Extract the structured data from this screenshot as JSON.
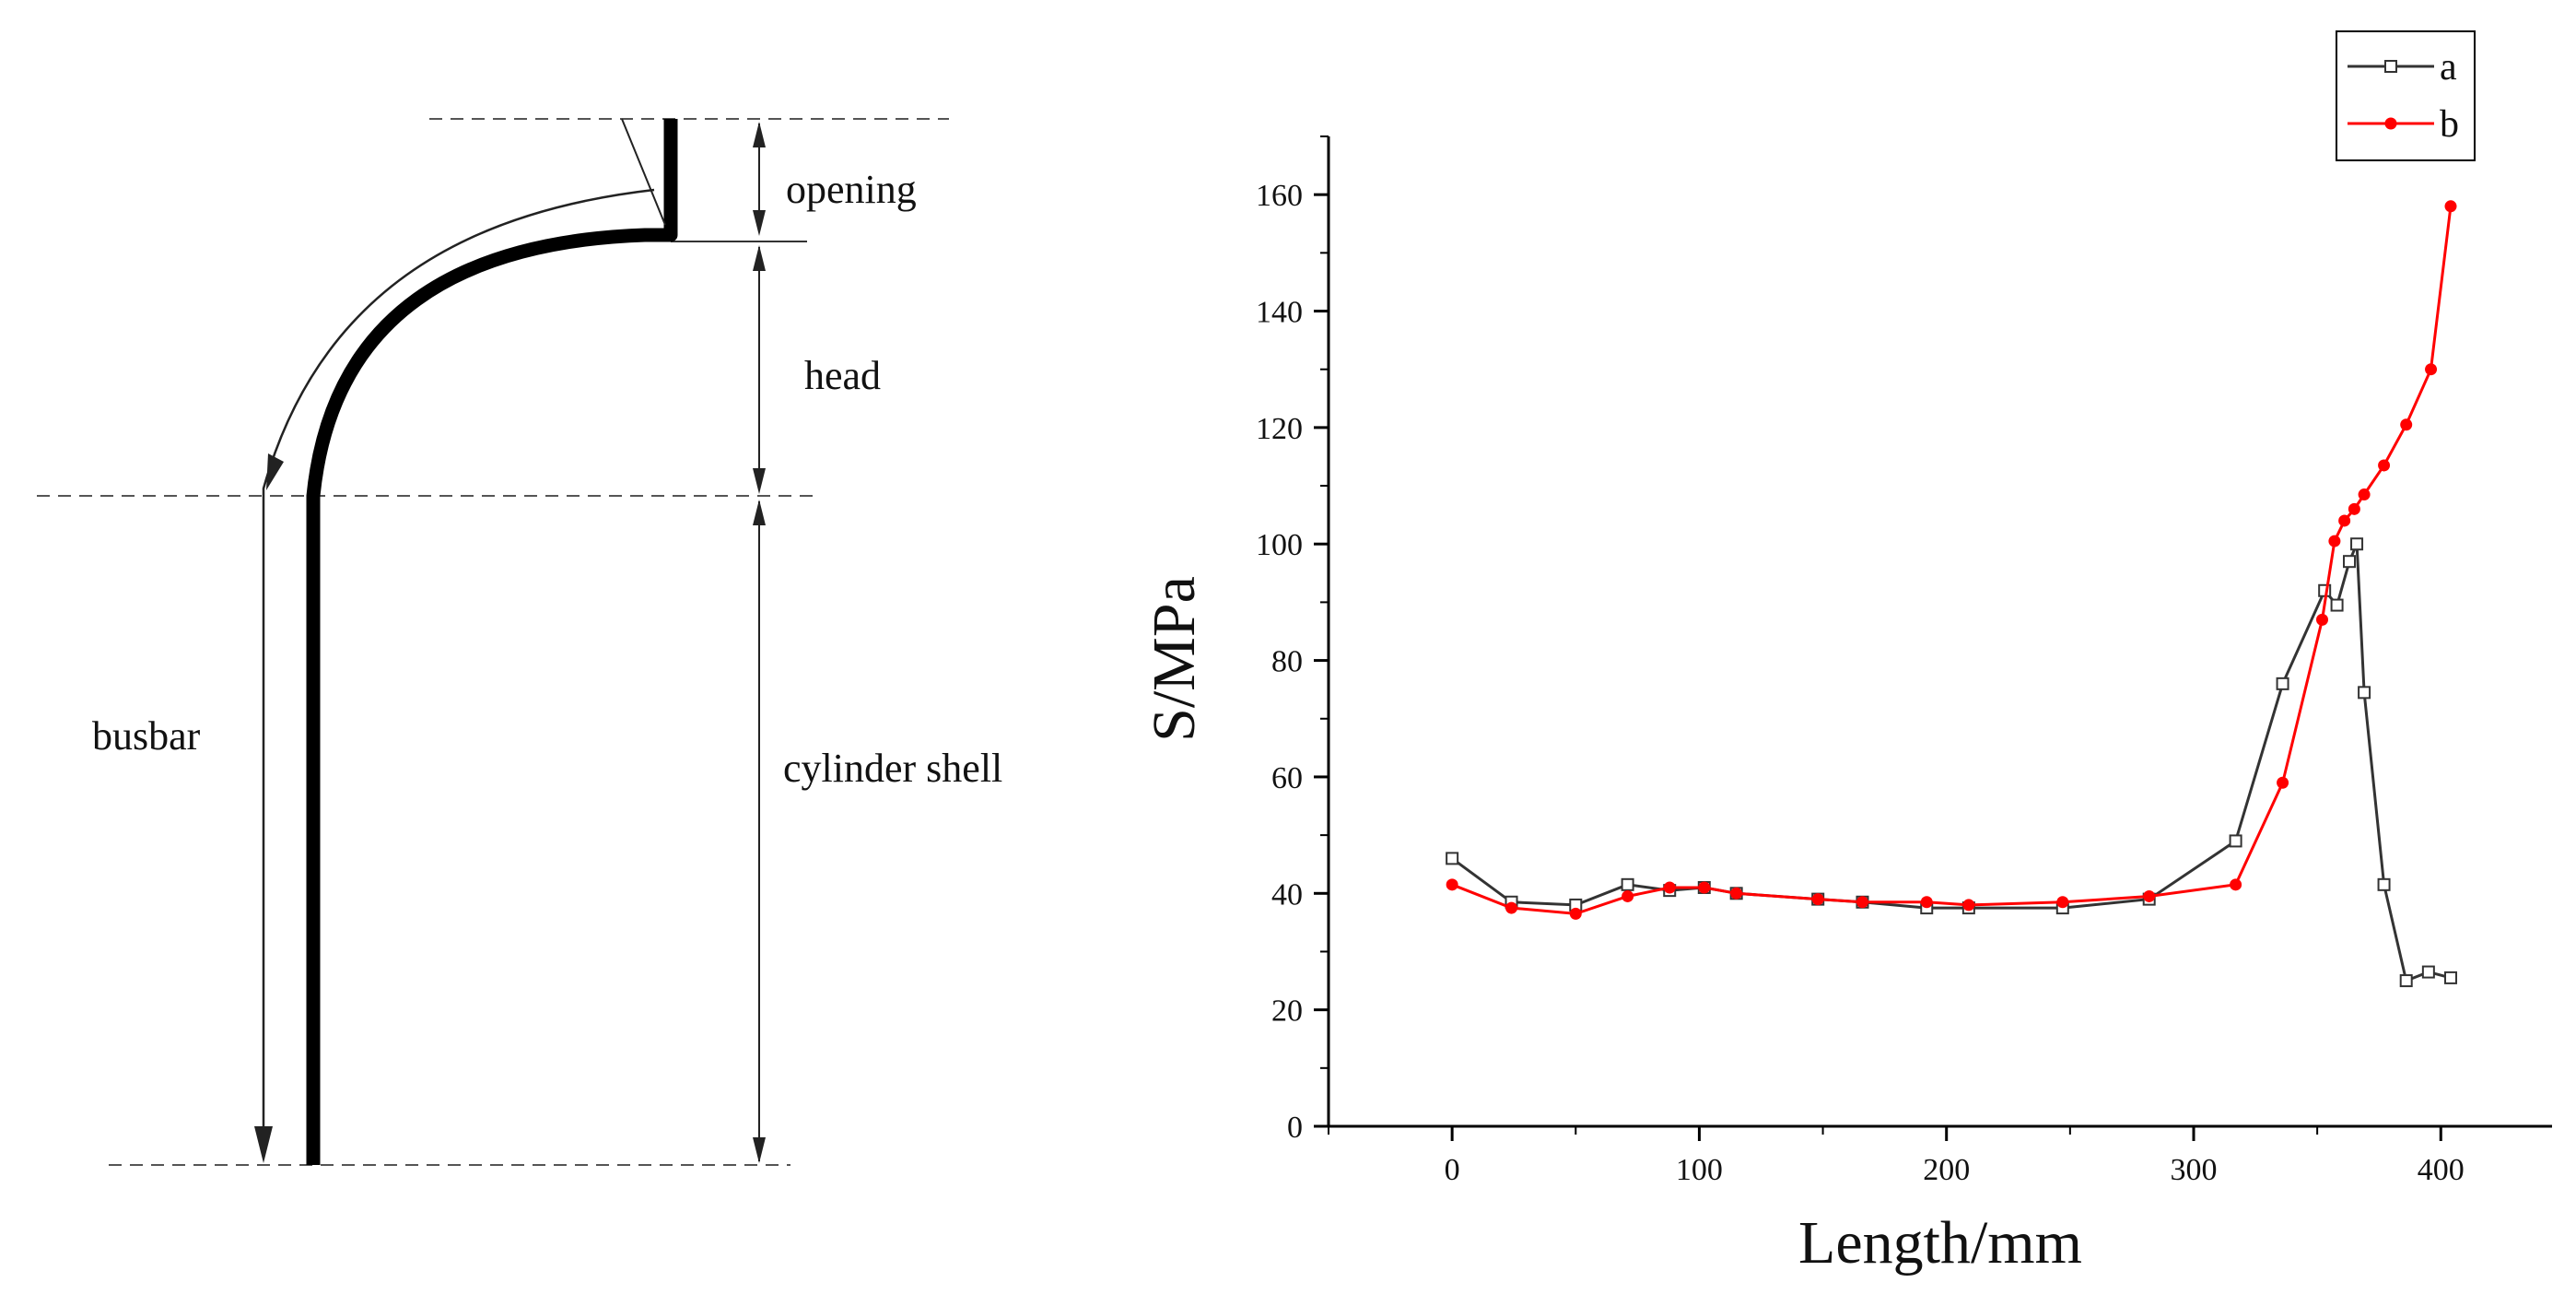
{
  "diagram": {
    "labels": {
      "opening": "opening",
      "head": "head",
      "busbar": "busbar",
      "cylinder_shell": "cylinder shell"
    }
  },
  "chart_data": {
    "type": "line",
    "xlabel": "Length/mm",
    "ylabel": "S/MPa",
    "xlim": [
      -50,
      445
    ],
    "ylim": [
      0,
      170
    ],
    "xticks": [
      0,
      100,
      200,
      300,
      400
    ],
    "yticks": [
      0,
      20,
      40,
      60,
      80,
      100,
      120,
      140,
      160
    ],
    "grid": false,
    "legend_position": "top-right",
    "series": [
      {
        "name": "a",
        "color": "#333333",
        "marker": "open-square",
        "x": [
          0,
          24,
          50,
          71,
          88,
          102,
          115,
          148,
          166,
          192,
          209,
          247,
          282,
          317,
          336,
          353,
          358,
          363,
          366,
          369,
          377,
          386,
          395,
          404
        ],
        "y": [
          46,
          38.5,
          38,
          41.5,
          40.5,
          41,
          40,
          39,
          38.5,
          37.5,
          37.5,
          37.5,
          39,
          49,
          76,
          92,
          89.5,
          97,
          100,
          74.5,
          41.5,
          25,
          26.5,
          25.5
        ]
      },
      {
        "name": "b",
        "color": "#ff0000",
        "marker": "filled-circle",
        "x": [
          0,
          24,
          50,
          71,
          88,
          102,
          115,
          148,
          166,
          192,
          209,
          247,
          282,
          317,
          336,
          352,
          357,
          361,
          365,
          369,
          377,
          386,
          396,
          404
        ],
        "y": [
          41.5,
          37.5,
          36.5,
          39.5,
          41,
          41,
          40,
          39,
          38.5,
          38.5,
          38,
          38.5,
          39.5,
          41.5,
          59,
          87,
          100.5,
          104,
          106,
          108.5,
          113.5,
          120.5,
          130,
          158
        ]
      }
    ]
  }
}
